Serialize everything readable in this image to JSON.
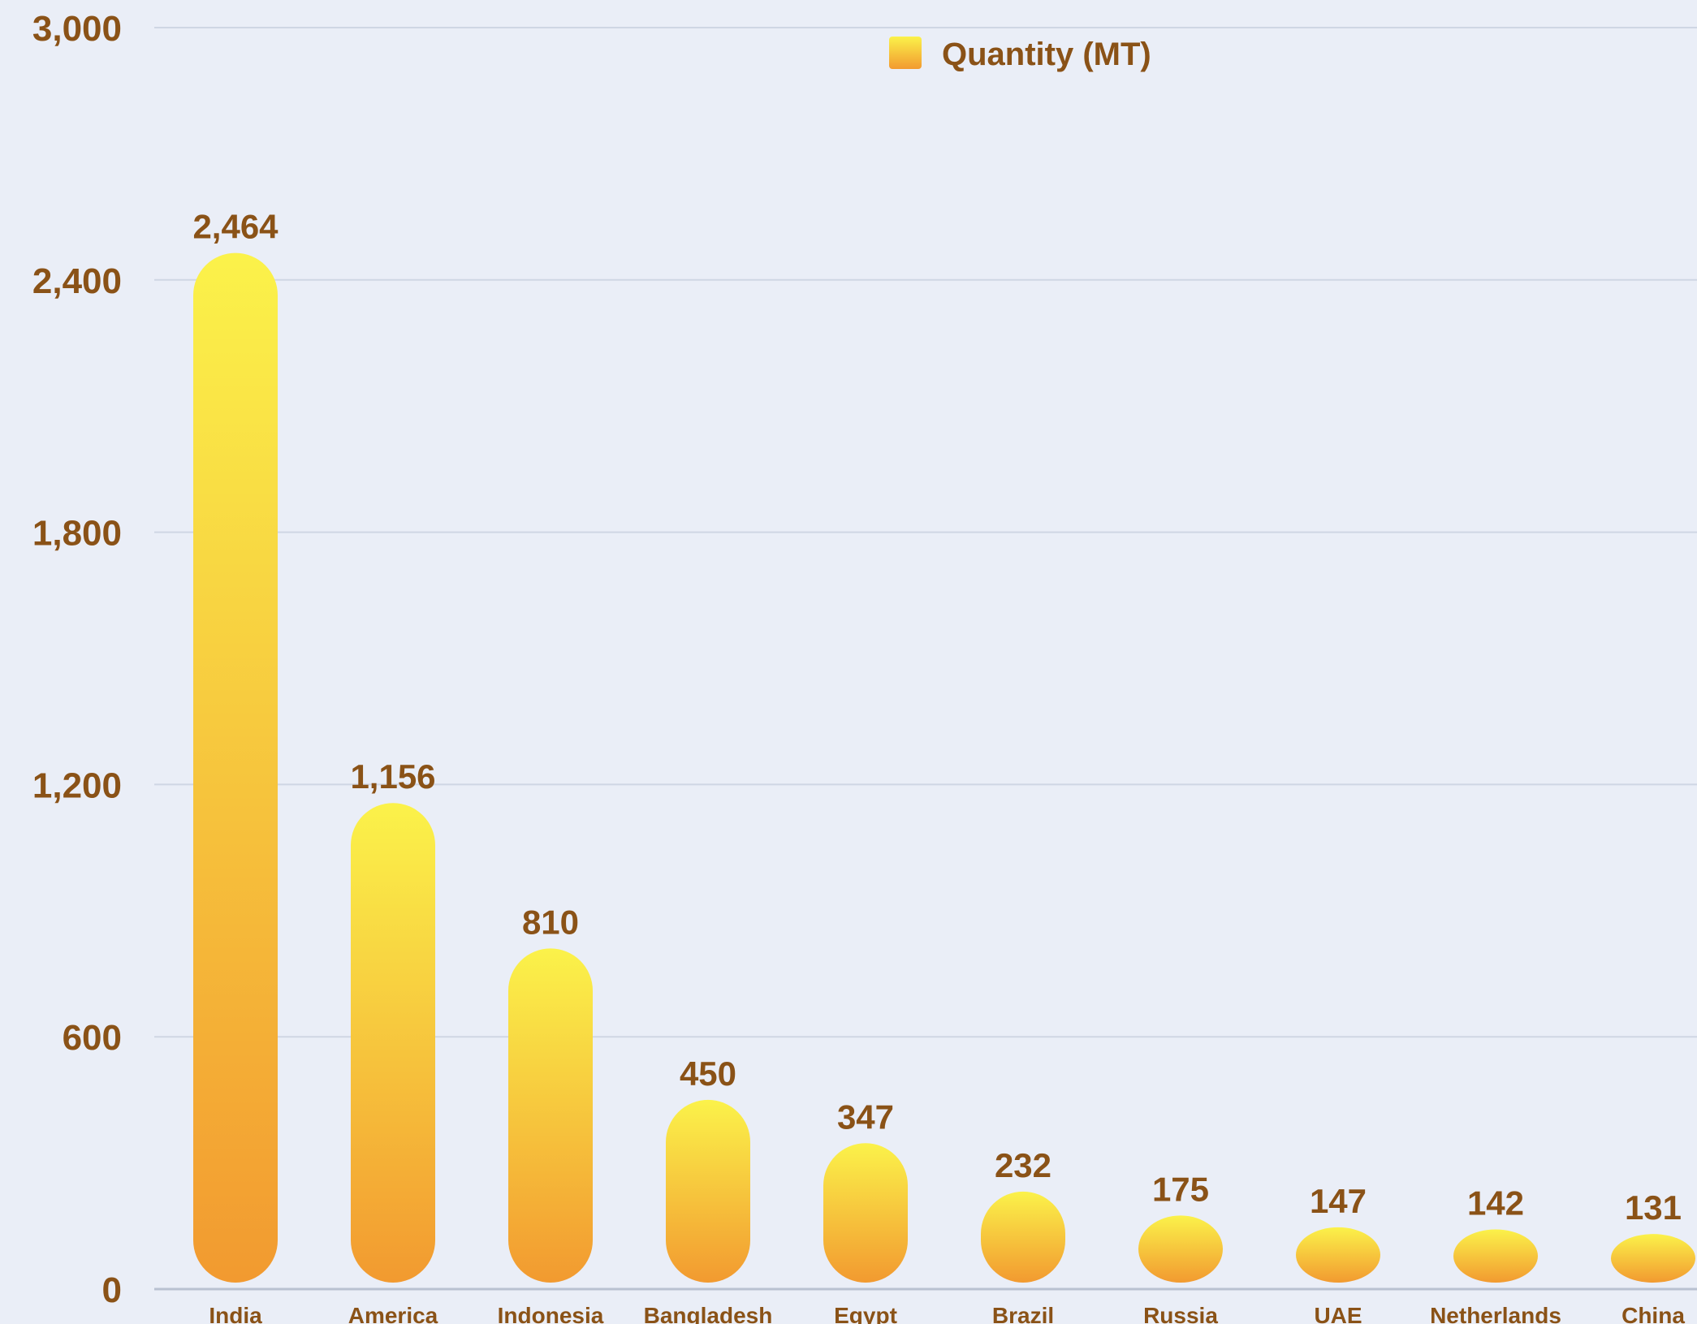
{
  "chart_data": {
    "type": "bar",
    "categories": [
      "India",
      "America",
      "Indonesia",
      "Bangladesh",
      "Egypt",
      "Brazil",
      "Russia",
      "UAE",
      "Netherlands",
      "China"
    ],
    "series": [
      {
        "name": "Quantity (MT)",
        "values": [
          2464,
          1156,
          810,
          450,
          347,
          232,
          175,
          147,
          142,
          131
        ]
      }
    ],
    "value_labels": [
      "2,464",
      "1,156",
      "810",
      "450",
      "347",
      "232",
      "175",
      "147",
      "142",
      "131"
    ],
    "y_ticks": [
      0,
      600,
      1200,
      1800,
      2400,
      3000
    ],
    "y_tick_labels": [
      "0",
      "600",
      "1,200",
      "1,800",
      "2,400",
      "3,000"
    ],
    "ylim": [
      0,
      3000
    ],
    "grid": true,
    "legend_position": "top-center",
    "title": "",
    "xlabel": "",
    "ylabel": "",
    "colors": {
      "bar_top": "#fbf24a",
      "bar_bottom": "#f29a30",
      "text": "#8a5217",
      "grid": "#cfd6e4",
      "background": "#eaeef7"
    }
  }
}
